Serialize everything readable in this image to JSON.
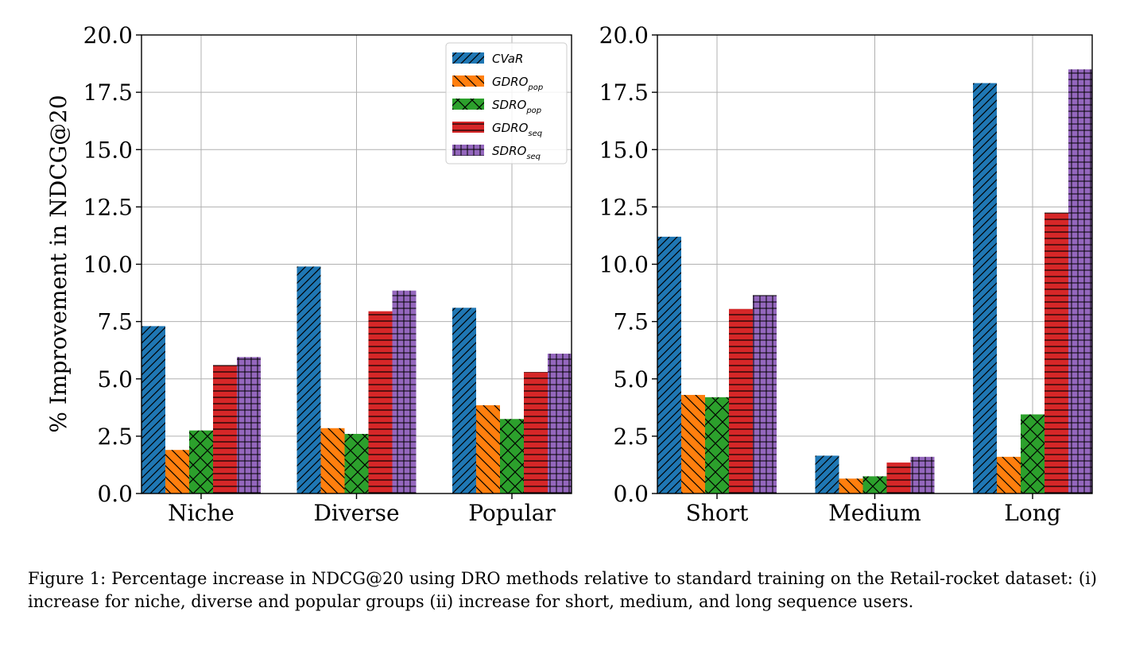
{
  "chart_data": [
    {
      "type": "bar",
      "categories": [
        "Niche",
        "Diverse",
        "Popular"
      ],
      "ylabel": "% Improvement in NDCG@20",
      "ylim": [
        0,
        20
      ],
      "yticks": [
        "0.0",
        "2.5",
        "5.0",
        "7.5",
        "10.0",
        "12.5",
        "15.0",
        "17.5",
        "20.0"
      ],
      "grid": true,
      "legend_position": "top-right",
      "series": [
        {
          "name": "CVaR",
          "values": [
            7.3,
            9.9,
            8.1
          ]
        },
        {
          "name": "GDRO_pop",
          "values": [
            1.9,
            2.85,
            3.85
          ]
        },
        {
          "name": "SDRO_pop",
          "values": [
            2.75,
            2.6,
            3.25
          ]
        },
        {
          "name": "GDRO_seq",
          "values": [
            5.6,
            7.95,
            5.3
          ]
        },
        {
          "name": "SDRO_seq",
          "values": [
            5.95,
            8.85,
            6.1
          ]
        }
      ]
    },
    {
      "type": "bar",
      "categories": [
        "Short",
        "Medium",
        "Long"
      ],
      "ylim": [
        0,
        20
      ],
      "yticks": [
        "0.0",
        "2.5",
        "5.0",
        "7.5",
        "10.0",
        "12.5",
        "15.0",
        "17.5",
        "20.0"
      ],
      "grid": true,
      "series": [
        {
          "name": "CVaR",
          "values": [
            11.2,
            1.65,
            17.9
          ]
        },
        {
          "name": "GDRO_pop",
          "values": [
            4.3,
            0.65,
            1.6
          ]
        },
        {
          "name": "SDRO_pop",
          "values": [
            4.2,
            0.75,
            3.45
          ]
        },
        {
          "name": "GDRO_seq",
          "values": [
            8.05,
            1.35,
            12.25
          ]
        },
        {
          "name": "SDRO_seq",
          "values": [
            8.65,
            1.6,
            18.5
          ]
        }
      ]
    }
  ],
  "legend": [
    {
      "base": "CVaR",
      "sub": ""
    },
    {
      "base": "GDRO",
      "sub": "pop"
    },
    {
      "base": "SDRO",
      "sub": "pop"
    },
    {
      "base": "GDRO",
      "sub": "seq"
    },
    {
      "base": "SDRO",
      "sub": "seq"
    }
  ],
  "series_colors": [
    "#1f77b4",
    "#ff7f0e",
    "#2ca02c",
    "#d62728",
    "#9467bd"
  ],
  "series_hatches": [
    "diag-right",
    "diag-left",
    "cross-diag",
    "horizontal",
    "grid"
  ],
  "caption": "Figure 1: Percentage increase in NDCG@20 using DRO methods relative to standard training on the Retail-rocket dataset: (i) increase for niche, diverse and popular groups (ii) increase for short, medium, and long sequence users."
}
